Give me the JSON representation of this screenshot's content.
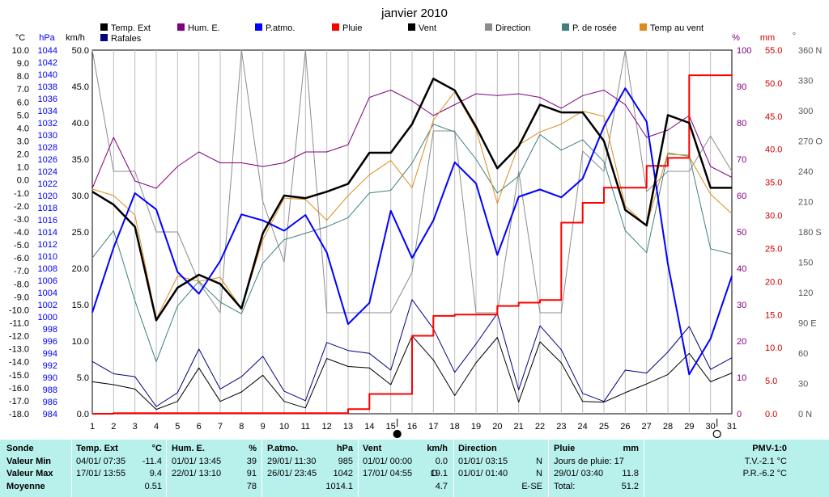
{
  "title": "janvier 2010",
  "colors": {
    "temp_ext": "#000000",
    "hum_e": "#800080",
    "p_atmo": "#0000ff",
    "pluie": "#ff0000",
    "vent": "#000000",
    "direction": "#8c8c8c",
    "rosee": "#3f7f7f",
    "temp_vent": "#e08a1e",
    "rafales": "#000080",
    "stats_bg": "#b8f0ec"
  },
  "legend": [
    {
      "label": "Temp. Ext",
      "color": "#000000"
    },
    {
      "label": "Hum. E.",
      "color": "#800080"
    },
    {
      "label": "P.atmo.",
      "color": "#0000ff"
    },
    {
      "label": "Pluie",
      "color": "#ff0000"
    },
    {
      "label": "Vent",
      "color": "#000000"
    },
    {
      "label": "Direction",
      "color": "#8c8c8c"
    },
    {
      "label": "P. de rosée",
      "color": "#3f7f7f"
    },
    {
      "label": "Temp au vent",
      "color": "#e08a1e"
    },
    {
      "label": "Rafales",
      "color": "#000080"
    }
  ],
  "axis_units": {
    "temp": "°C",
    "hpa": "hPa",
    "kmh": "km/h",
    "pct": "%",
    "mm": "mm",
    "deg": "°"
  },
  "chart_data": {
    "type": "line",
    "title": "janvier 2010",
    "x": [
      1,
      2,
      3,
      4,
      5,
      6,
      7,
      8,
      9,
      10,
      11,
      12,
      13,
      14,
      15,
      16,
      17,
      18,
      19,
      20,
      21,
      22,
      23,
      24,
      25,
      26,
      27,
      28,
      29,
      30,
      31
    ],
    "axes": {
      "temp": {
        "range": [
          -18.0,
          10.0
        ],
        "ticks": [
          "10.0",
          "9.0",
          "8.0",
          "7.0",
          "6.0",
          "5.0",
          "4.0",
          "3.0",
          "2.0",
          "1.0",
          "0.0",
          "-1.0",
          "-2.0",
          "-3.0",
          "-4.0",
          "-5.0",
          "-6.0",
          "-7.0",
          "-8.0",
          "-9.0",
          "-10.0",
          "-11.0",
          "-12.0",
          "-13.0",
          "-14.0",
          "-15.0",
          "-16.0",
          "-17.0",
          "-18.0"
        ]
      },
      "hpa": {
        "range": [
          984,
          1044
        ],
        "ticks": [
          "1044",
          "1042",
          "1040",
          "1038",
          "1036",
          "1034",
          "1032",
          "1030",
          "1028",
          "1026",
          "1024",
          "1022",
          "1020",
          "1018",
          "1016",
          "1014",
          "1012",
          "1010",
          "1008",
          "1006",
          "1004",
          "1002",
          "1000",
          "998",
          "996",
          "994",
          "992",
          "990",
          "988",
          "986",
          "984"
        ]
      },
      "kmh": {
        "range": [
          0,
          50
        ],
        "ticks": [
          "50.0",
          "45.0",
          "40.0",
          "35.0",
          "30.0",
          "25.0",
          "20.0",
          "15.0",
          "10.0",
          "5.0",
          "0.0"
        ]
      },
      "pct": {
        "range": [
          0,
          100
        ],
        "ticks": [
          "100",
          "90",
          "80",
          "70",
          "60",
          "50",
          "40",
          "30",
          "20",
          "10",
          "0"
        ]
      },
      "mm": {
        "range": [
          0,
          55
        ],
        "ticks": [
          "55.0",
          "50.0",
          "45.0",
          "40.0",
          "35.0",
          "30.0",
          "25.0",
          "20.0",
          "15.0",
          "10.0",
          "5.0",
          "0.0"
        ]
      },
      "deg": {
        "range": [
          0,
          360
        ],
        "ticks": [
          "360 N",
          "330",
          "300",
          "270 O",
          "240",
          "210",
          "180 S",
          "150",
          "120",
          "90 E",
          "60",
          "30",
          "0 N"
        ]
      }
    },
    "series": [
      {
        "name": "Temp. Ext",
        "axis": "temp",
        "color": "#000000",
        "width": 2.5,
        "values": [
          -0.9,
          -1.9,
          -3.6,
          -10.8,
          -8.3,
          -7.3,
          -8.0,
          -9.9,
          -4.1,
          -1.2,
          -1.4,
          -0.9,
          -0.3,
          2.1,
          2.1,
          4.3,
          7.8,
          6.9,
          4.1,
          0.9,
          2.6,
          5.8,
          5.2,
          5.2,
          3.0,
          -2.3,
          -3.5,
          5.0,
          4.4,
          -0.6,
          -0.6
        ]
      },
      {
        "name": "Hum. E.",
        "axis": "pct",
        "color": "#800080",
        "width": 1,
        "values": [
          62,
          76,
          64,
          62,
          68,
          72,
          69,
          69,
          68,
          69,
          72,
          72,
          74,
          87,
          89,
          86,
          82,
          85,
          88,
          87.5,
          88,
          87,
          84,
          87.5,
          89,
          85,
          76,
          78,
          82,
          68,
          65
        ]
      },
      {
        "name": "P.atmo.",
        "axis": "hpa",
        "color": "#0000ff",
        "width": 2,
        "values": [
          1000.7,
          1011.4,
          1020.4,
          1017.7,
          1007.4,
          1003.8,
          1009.2,
          1016.9,
          1015.9,
          1014.2,
          1016.8,
          1010.6,
          998.8,
          1002.3,
          1017.5,
          1009.7,
          1015.9,
          1025.5,
          1022.0,
          1010.2,
          1019.8,
          1021.0,
          1019.7,
          1022.8,
          1031.4,
          1037.7,
          1032.2,
          1008.7,
          990.5,
          996.4,
          1006.7
        ]
      },
      {
        "name": "Pluie",
        "axis": "mm",
        "color": "#ff0000",
        "width": 2,
        "step": true,
        "values": [
          0,
          0.1,
          0.1,
          0.1,
          0.1,
          0.1,
          0.1,
          0.1,
          0.1,
          0.1,
          0.1,
          0.1,
          0.7,
          3.0,
          3.0,
          11.8,
          14.8,
          15.0,
          15.0,
          16.3,
          16.8,
          17.2,
          28.9,
          31.9,
          34.2,
          34.2,
          37.5,
          38.7,
          51.2,
          51.2,
          51.3
        ]
      },
      {
        "name": "Vent",
        "axis": "kmh",
        "color": "#000000",
        "width": 1,
        "values": [
          4.4,
          4.0,
          3.4,
          0.6,
          1.7,
          6.3,
          1.7,
          3.0,
          5.3,
          1.7,
          0.8,
          7.6,
          6.5,
          6.3,
          4.0,
          10.7,
          7.4,
          2.5,
          7.0,
          10.5,
          1.6,
          9.9,
          7.0,
          1.7,
          1.6,
          2.9,
          4.1,
          5.4,
          8.3,
          4.4,
          5.6
        ]
      },
      {
        "name": "Direction",
        "axis": "deg",
        "color": "#8c8c8c",
        "width": 1,
        "values": [
          360,
          240,
          240,
          180,
          180,
          130,
          100,
          360,
          210,
          150,
          360,
          100,
          100,
          100,
          100,
          140,
          280,
          280,
          100,
          100,
          240,
          100,
          100,
          260,
          240,
          360,
          220,
          240,
          240,
          275,
          240
        ]
      },
      {
        "name": "P. de rosée",
        "axis": "temp",
        "color": "#3f7f7f",
        "width": 1,
        "values": [
          -6.0,
          -3.9,
          -9.3,
          -14.0,
          -9.7,
          -7.8,
          -9.4,
          -10.3,
          -6.4,
          -4.6,
          -4.1,
          -3.6,
          -2.9,
          -1.0,
          -0.8,
          1.3,
          4.3,
          3.7,
          1.6,
          -1.0,
          0.3,
          3.5,
          2.3,
          3.1,
          1.4,
          -3.9,
          -5.6,
          2.0,
          1.9,
          -5.3,
          -5.7
        ]
      },
      {
        "name": "Temp au vent",
        "axis": "temp",
        "color": "#e08a1e",
        "width": 1,
        "values": [
          -0.7,
          -1.2,
          -2.7,
          -10.7,
          -7.4,
          -7.8,
          -7.5,
          -9.9,
          -4.6,
          -1.4,
          -1.5,
          -3.1,
          -1.2,
          0.4,
          1.5,
          -0.6,
          4.6,
          6.8,
          3.9,
          -1.8,
          2.7,
          3.7,
          4.3,
          5.3,
          4.9,
          -2.0,
          -3.5,
          2.1,
          1.8,
          -1.1,
          -2.6
        ]
      },
      {
        "name": "Rafales",
        "axis": "kmh",
        "color": "#000080",
        "width": 1,
        "values": [
          7.2,
          5.5,
          5.1,
          1.0,
          2.9,
          8.9,
          3.4,
          5.1,
          7.9,
          3.1,
          1.8,
          9.8,
          8.7,
          8.3,
          6.0,
          15.7,
          11.7,
          5.7,
          9.6,
          13.8,
          3.3,
          12.1,
          8.8,
          2.8,
          1.7,
          6.0,
          5.6,
          8.5,
          12.0,
          6.1,
          7.7
        ]
      }
    ],
    "markers": [
      {
        "day": 15,
        "symbol": "filled-circle"
      },
      {
        "day": 30,
        "symbol": "open-circle"
      }
    ],
    "xlim": [
      1,
      31
    ]
  },
  "stats": {
    "sonde": {
      "h": "Sonde",
      "min": "Valeur Min",
      "max": "Valeur Max",
      "avg": "Moyenne"
    },
    "temp": {
      "h": "Temp. Ext",
      "u": "°C",
      "min_t": "04/01/ 07:35",
      "min_v": "-11.4",
      "max_t": "17/01/ 13:55",
      "max_v": "9.4",
      "avg_v": "0.51"
    },
    "hum": {
      "h": "Hum. E.",
      "u": "%",
      "min_t": "01/01/ 13:45",
      "min_v": "39",
      "max_t": "22/01/ 13:10",
      "max_v": "91",
      "avg_v": "78"
    },
    "patmo": {
      "h": "P.atmo.",
      "u": "hPa",
      "min_t": "29/01/ 11:30",
      "min_v": "985",
      "max_t": "26/01/ 23:45",
      "max_v": "1042",
      "avg_v": "1014.1"
    },
    "vent": {
      "h": "Vent",
      "u": "km/h",
      "min_t": "01/01/ 00:00",
      "min_v": "0.0",
      "max_t": "17/01/ 04:55",
      "max_d": "O",
      "max_v": "19.1",
      "avg_v": "4.7"
    },
    "dir": {
      "h": "Direction",
      "min_t": "01/01/ 03:15",
      "min_v": "N",
      "max_t": "01/01/ 01:40",
      "max_v": "N",
      "avg_v": "E-SE"
    },
    "pluie": {
      "h": "Pluie",
      "u": "mm",
      "r1_label": "Jours de pluie: 17",
      "r2_label": "29/01/ 03:40",
      "r2_v": "11.8",
      "r3_label": "Total:",
      "r3_v": "51.2"
    },
    "pmv": {
      "h": "PMV-1:0",
      "tv": "T.V.-2.1 °C",
      "pr": "P.R.-6.2 °C"
    }
  }
}
